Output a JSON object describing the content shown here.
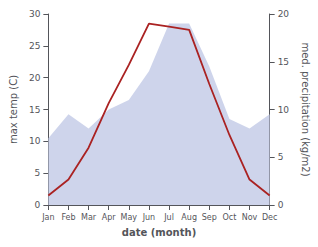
{
  "chart_data": {
    "type": "line",
    "xlabel": "date (month)",
    "ylabel": "max temp (C)",
    "y2label": "med. precipitation (kg/m2)",
    "categories": [
      "Jan",
      "Feb",
      "Mar",
      "Apr",
      "May",
      "Jun",
      "Jul",
      "Aug",
      "Sep",
      "Oct",
      "Nov",
      "Dec"
    ],
    "series": [
      {
        "type": "area",
        "axis": "y2",
        "color": "#c5cce8",
        "values": [
          7,
          9.5,
          8,
          10,
          11,
          14,
          19,
          19,
          14.5,
          9,
          8,
          9.5
        ]
      },
      {
        "type": "line",
        "color": "#aa2222",
        "values": [
          1.5,
          4.0,
          9.0,
          16.0,
          22.0,
          28.5,
          28.0,
          27.5,
          19.0,
          11.0,
          4.0,
          1.5
        ]
      }
    ],
    "ylim": [
      0,
      30
    ],
    "yticks": [
      0,
      5,
      10,
      15,
      20,
      25,
      30
    ],
    "y2lim": [
      0,
      20
    ],
    "y2ticks": [
      0,
      5,
      10,
      15,
      20
    ],
    "grid": false
  }
}
